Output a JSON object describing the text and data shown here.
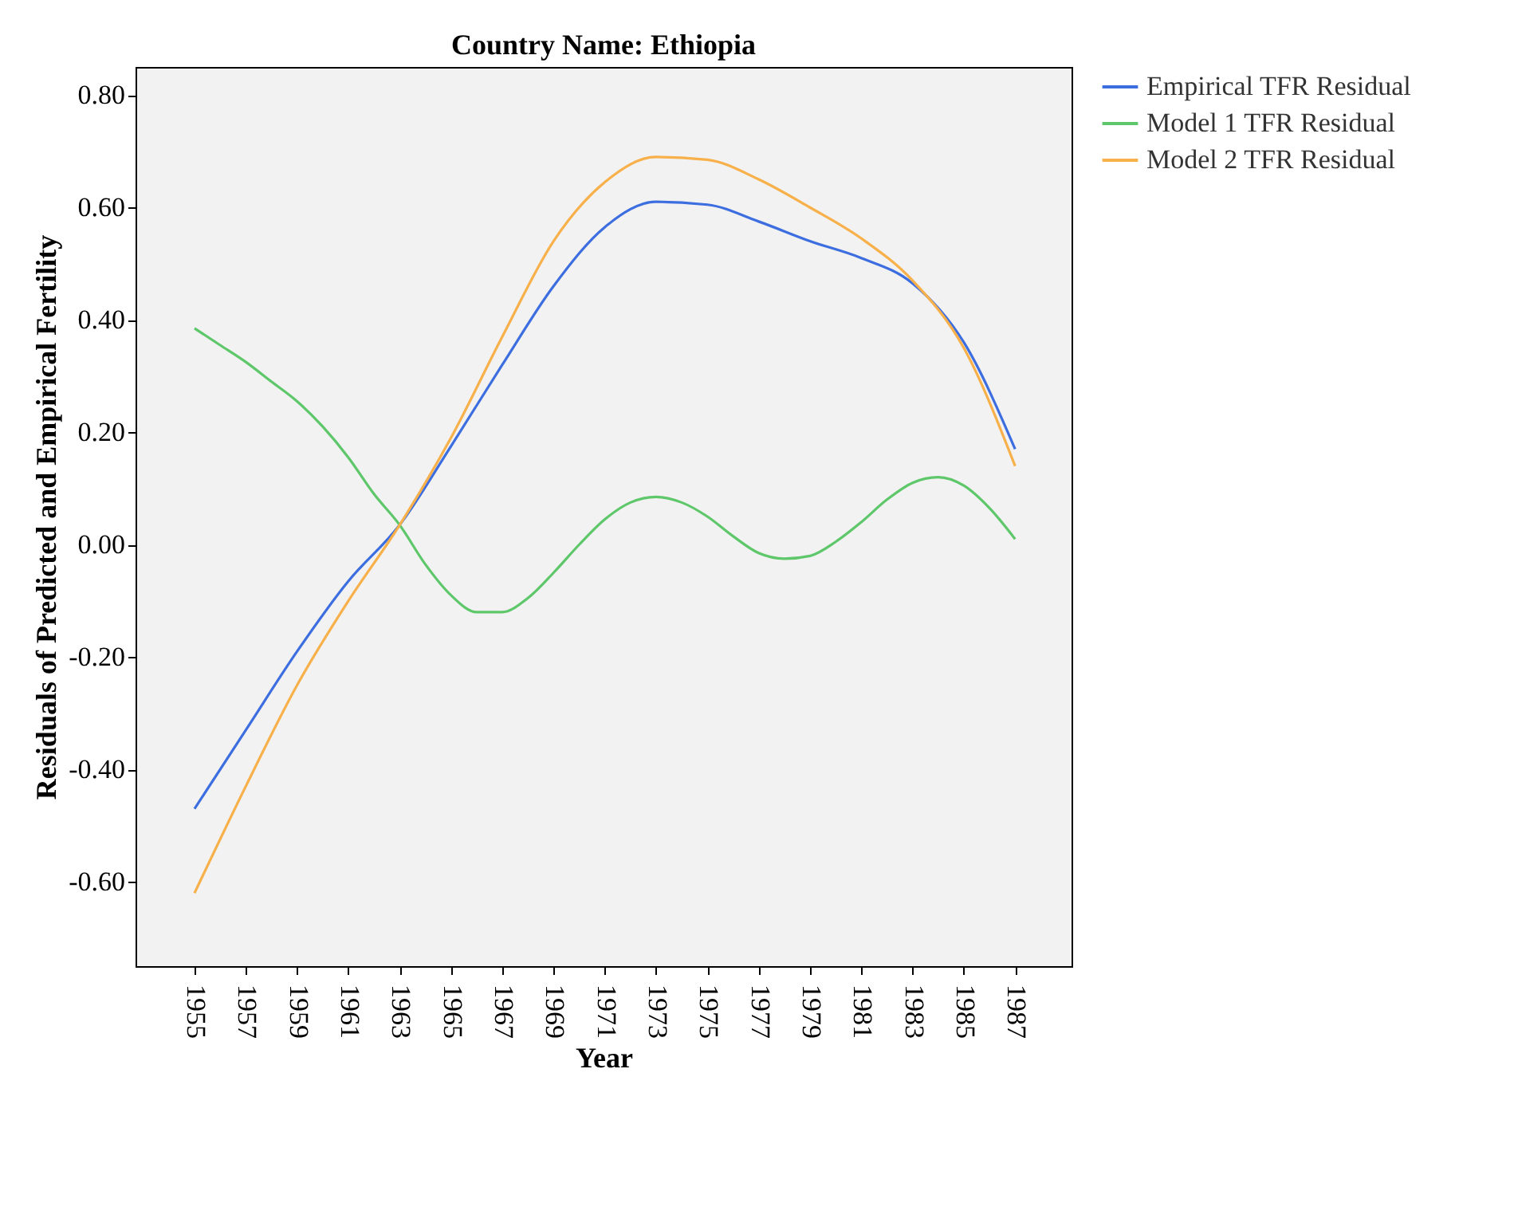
{
  "chart_data": {
    "type": "line",
    "title": "Country Name: Ethiopia",
    "xlabel": "Year",
    "ylabel": "Residuals of Predicted and Empirical Fertility",
    "x": [
      1955,
      1957,
      1959,
      1961,
      1963,
      1965,
      1967,
      1969,
      1971,
      1973,
      1975,
      1977,
      1979,
      1981,
      1983,
      1985,
      1987
    ],
    "series": [
      {
        "name": "Empirical TFR Residual",
        "color": "#3d6ee0",
        "values": [
          -0.47,
          -0.33,
          -0.19,
          -0.065,
          0.035,
          0.175,
          0.32,
          0.46,
          0.565,
          0.61,
          0.605,
          0.575,
          0.54,
          0.51,
          0.465,
          0.36,
          0.17
        ]
      },
      {
        "name": "Model 1 TFR Residual",
        "color": "#5dc76a",
        "x": [
          1955,
          1956,
          1957,
          1958,
          1959,
          1960,
          1961,
          1962,
          1963,
          1964,
          1965,
          1966,
          1967,
          1968,
          1969,
          1970,
          1971,
          1972,
          1973,
          1974,
          1975,
          1976,
          1977,
          1978,
          1979,
          1980,
          1981,
          1982,
          1983,
          1984,
          1985,
          1986,
          1987
        ],
        "values": [
          0.385,
          0.355,
          0.325,
          0.29,
          0.255,
          0.21,
          0.155,
          0.09,
          0.035,
          -0.035,
          -0.09,
          -0.12,
          -0.12,
          -0.095,
          -0.05,
          0.0,
          0.045,
          0.075,
          0.085,
          0.075,
          0.05,
          0.015,
          -0.015,
          -0.025,
          -0.02,
          0.005,
          0.04,
          0.08,
          0.11,
          0.12,
          0.105,
          0.065,
          0.01
        ]
      },
      {
        "name": "Model 2 TFR Residual",
        "color": "#f7b04a",
        "values": [
          -0.62,
          -0.43,
          -0.25,
          -0.1,
          0.035,
          0.19,
          0.37,
          0.54,
          0.645,
          0.69,
          0.685,
          0.65,
          0.6,
          0.545,
          0.47,
          0.35,
          0.14
        ]
      }
    ],
    "xlim": [
      1952.7,
      1989.2
    ],
    "xticks": [
      1955,
      1957,
      1959,
      1961,
      1963,
      1965,
      1967,
      1969,
      1971,
      1973,
      1975,
      1977,
      1979,
      1981,
      1983,
      1985,
      1987
    ],
    "ylim": [
      -0.75,
      0.85
    ],
    "yticks": [
      {
        "value": -0.6,
        "label": "-0.60"
      },
      {
        "value": -0.4,
        "label": "-0.40"
      },
      {
        "value": -0.2,
        "label": "-0.20"
      },
      {
        "value": 0,
        "label": "0.00"
      },
      {
        "value": 0.2,
        "label": "0.20"
      },
      {
        "value": 0.4,
        "label": "0.40"
      },
      {
        "value": 0.6,
        "label": "0.60"
      },
      {
        "value": 0.8,
        "label": "0.80"
      }
    ],
    "grid": false,
    "legend": "right",
    "marker": "none",
    "line_style": "solid"
  }
}
